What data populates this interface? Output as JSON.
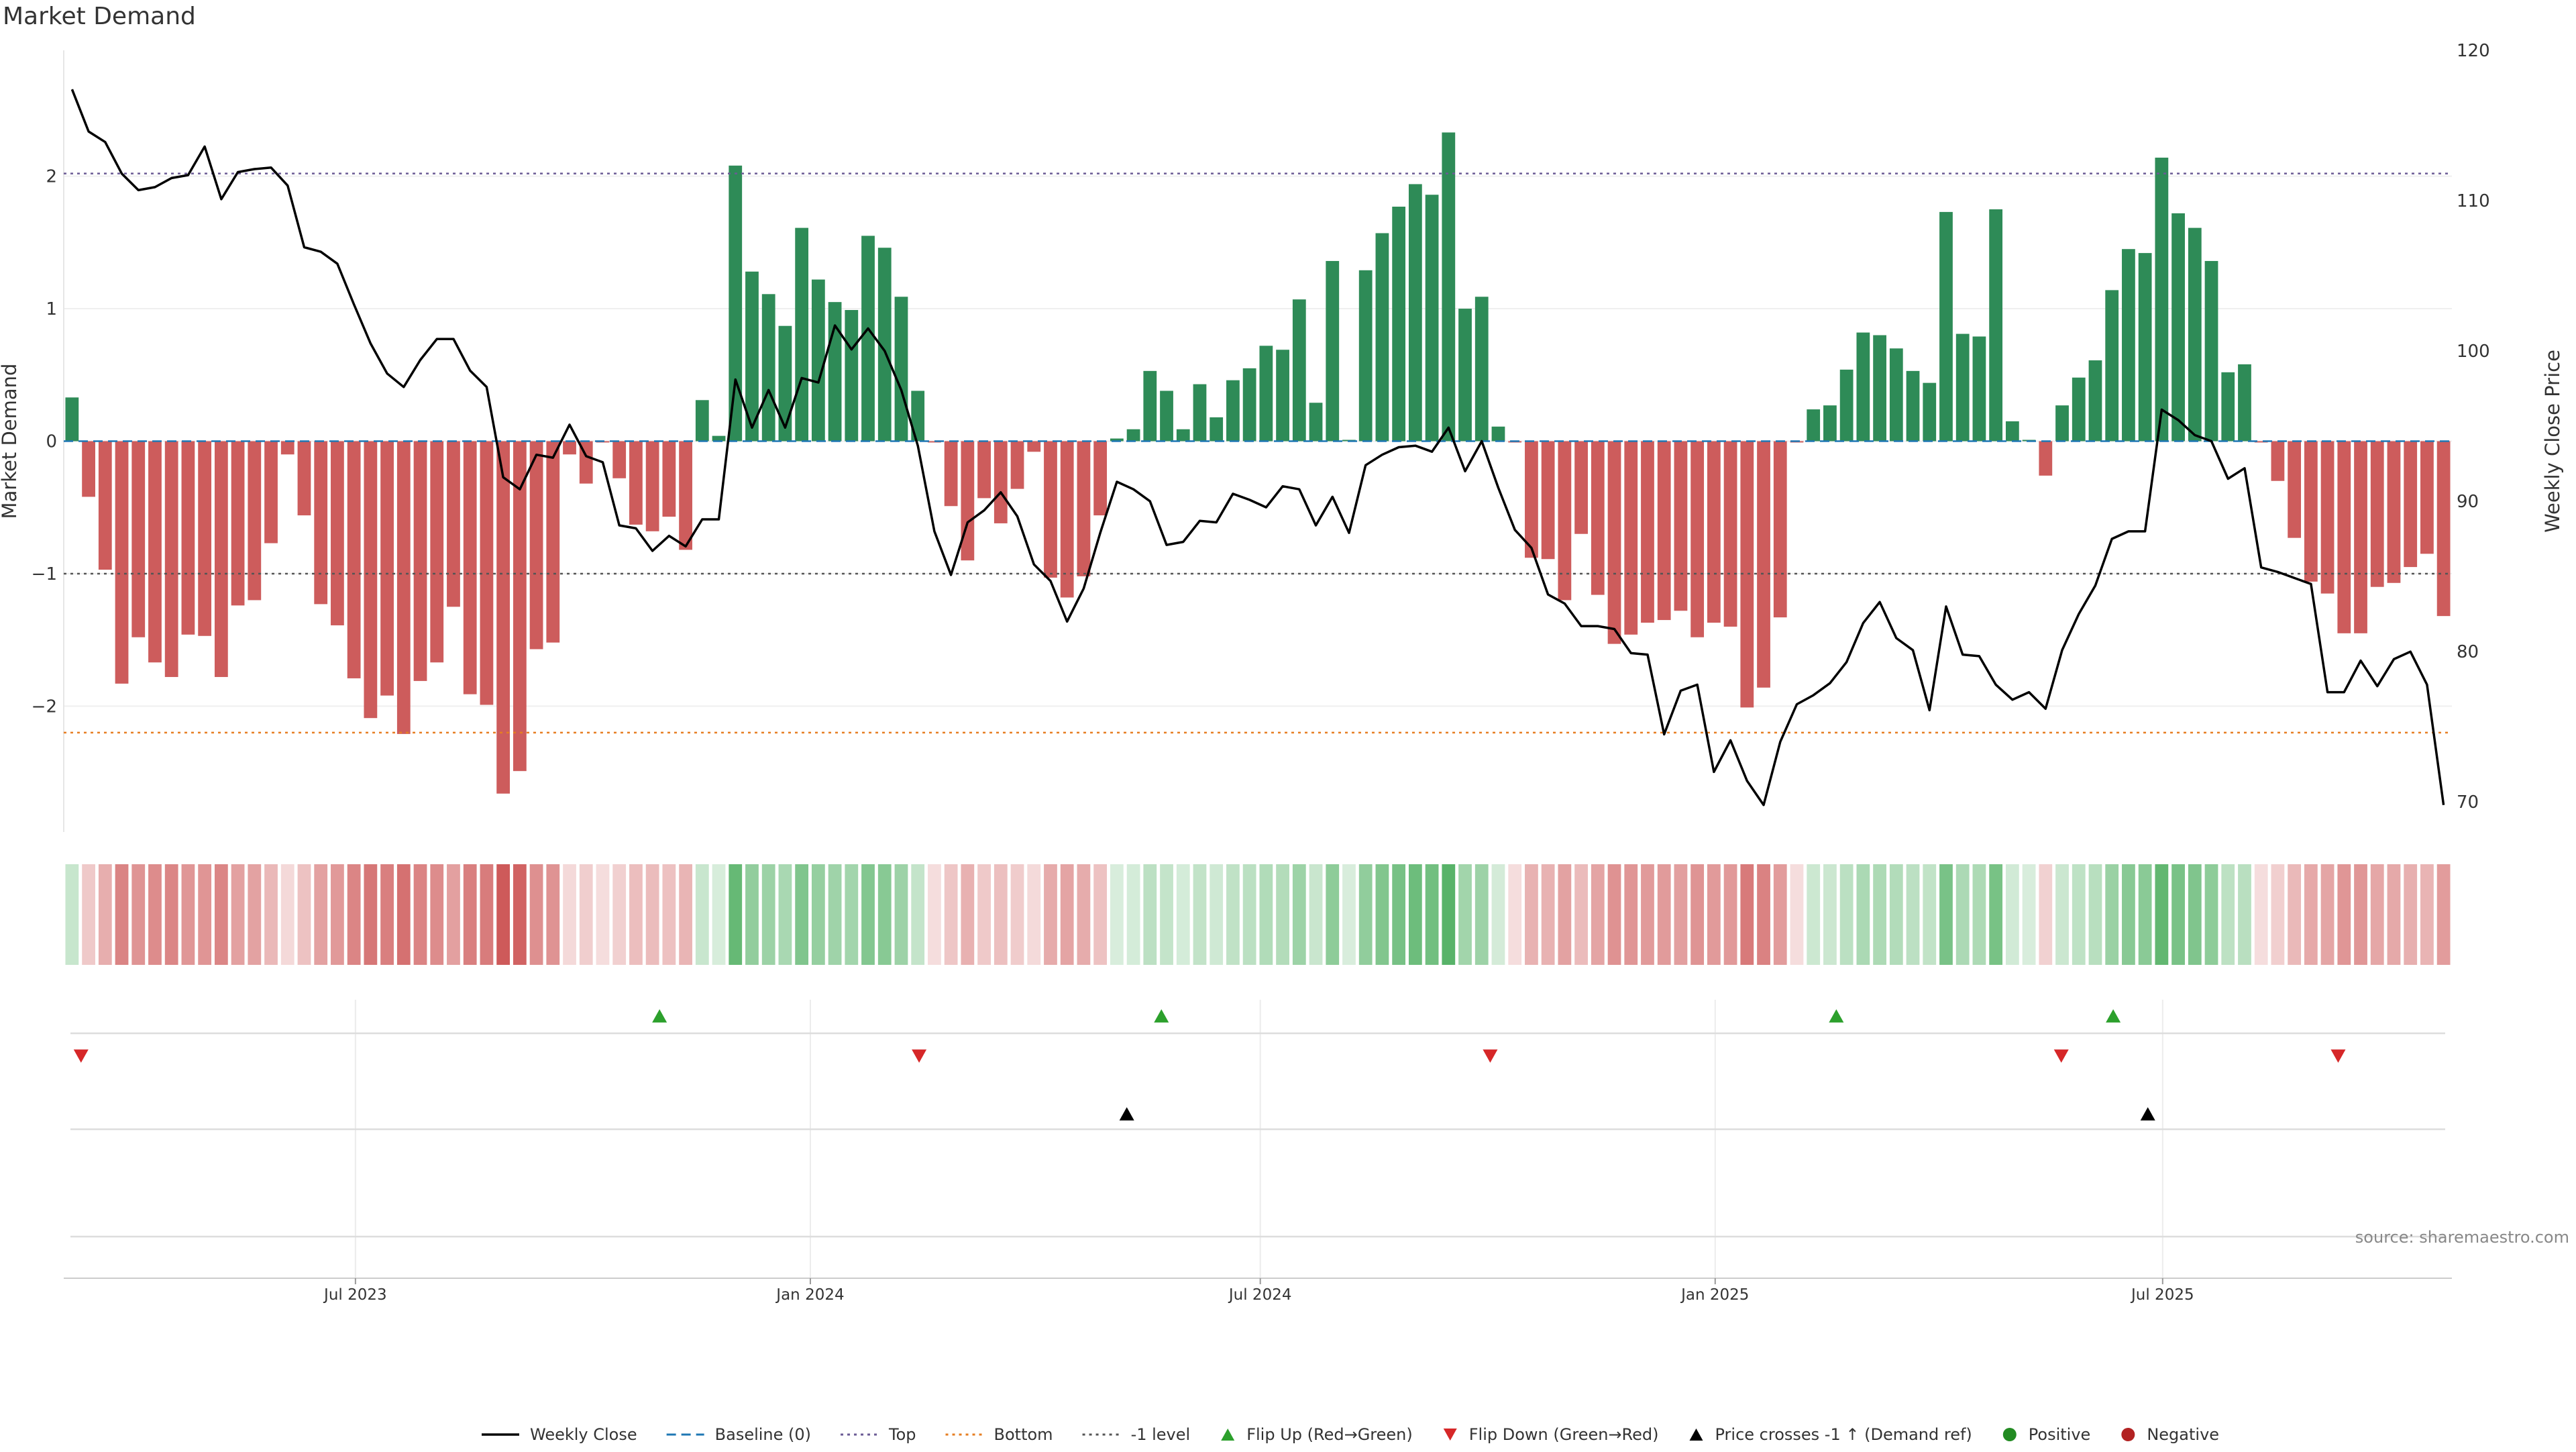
{
  "chart_title": "Market Demand",
  "source_text": "source: sharemaestro.com",
  "colors": {
    "positive_bar": "#2e8b57",
    "negative_bar": "#cd5c5c",
    "price_line": "#000000",
    "baseline": "#1f77b4",
    "top_line": "#6b5b95",
    "bottom_line": "#e67e22",
    "minus1_line": "#555555",
    "flip_up": "#2ca02c",
    "flip_down": "#d62728",
    "cross_marker": "#000000",
    "dot_positive": "#228b22",
    "dot_negative": "#b22222"
  },
  "chart_data": {
    "type": "bar",
    "title": "Market Demand",
    "ylabel_left": "Market Demand",
    "ylabel_right": "Weekly Close Price",
    "ylim_left": [
      -2.95,
      2.95
    ],
    "ylim_right": [
      68,
      120
    ],
    "left_ticks": [
      2,
      1,
      0,
      -1,
      -2
    ],
    "right_ticks": [
      120,
      110,
      100,
      90,
      80,
      70
    ],
    "x_start": "2023-03-05",
    "x_end": "2025-10-26",
    "x_tick_labels": [
      {
        "date": "2023-07-01",
        "label": "Jul 2023"
      },
      {
        "date": "2024-01-01",
        "label": "Jan 2024"
      },
      {
        "date": "2024-07-01",
        "label": "Jul 2024"
      },
      {
        "date": "2025-01-01",
        "label": "Jan 2025"
      },
      {
        "date": "2025-07-01",
        "label": "Jul 2025"
      }
    ],
    "reference_lines": {
      "top": 2.02,
      "bottom": -2.2,
      "minus1": -1,
      "baseline": 0
    },
    "series": [
      {
        "name": "Market Demand",
        "values": [
          0.33,
          -0.42,
          -0.97,
          -1.83,
          -1.48,
          -1.67,
          -1.78,
          -1.46,
          -1.47,
          -1.78,
          -1.24,
          -1.2,
          -0.77,
          -0.1,
          -0.56,
          -1.23,
          -1.39,
          -1.79,
          -2.09,
          -1.92,
          -2.21,
          -1.81,
          -1.67,
          -1.25,
          -1.91,
          -1.99,
          -2.66,
          -2.49,
          -1.57,
          -1.52,
          -0.1,
          -0.32,
          -0.01,
          -0.28,
          -0.63,
          -0.68,
          -0.57,
          -0.82,
          0.31,
          0.04,
          2.08,
          1.28,
          1.11,
          0.87,
          1.61,
          1.22,
          1.05,
          0.99,
          1.55,
          1.46,
          1.09,
          0.38,
          -0.01,
          -0.49,
          -0.9,
          -0.43,
          -0.62,
          -0.36,
          -0.08,
          -1.03,
          -1.18,
          -1.02,
          -0.56,
          0.02,
          0.09,
          0.53,
          0.38,
          0.09,
          0.43,
          0.18,
          0.46,
          0.55,
          0.72,
          0.69,
          1.07,
          0.29,
          1.36,
          0.01,
          1.29,
          1.57,
          1.77,
          1.94,
          1.86,
          2.33,
          1.0,
          1.09,
          0.11,
          -0.01,
          -0.88,
          -0.89,
          -1.2,
          -0.7,
          -1.16,
          -1.53,
          -1.46,
          -1.37,
          -1.35,
          -1.28,
          -1.48,
          -1.37,
          -1.4,
          -2.01,
          -1.86,
          -1.33,
          -0.01,
          0.24,
          0.27,
          0.54,
          0.82,
          0.8,
          0.7,
          0.53,
          0.44,
          1.73,
          0.81,
          0.79,
          1.75,
          0.15,
          0.01,
          -0.26,
          0.27,
          0.48,
          0.61,
          1.14,
          1.45,
          1.42,
          2.14,
          1.72,
          1.61,
          1.36,
          0.52,
          0.58,
          -0.01,
          -0.3,
          -0.73,
          -1.06,
          -1.15,
          -1.45,
          -1.45,
          -1.1,
          -1.07,
          -0.95,
          -0.85,
          -1.32
        ]
      },
      {
        "name": "Weekly Close",
        "values": [
          117.4,
          114.6,
          113.9,
          111.8,
          110.7,
          110.9,
          111.5,
          111.7,
          113.6,
          110.1,
          111.9,
          112.1,
          112.2,
          111.0,
          106.9,
          106.6,
          105.8,
          103.1,
          100.5,
          98.5,
          97.6,
          99.4,
          100.8,
          100.8,
          98.7,
          97.6,
          91.6,
          90.8,
          93.1,
          92.9,
          95.1,
          93.0,
          92.6,
          88.4,
          88.2,
          86.7,
          87.7,
          87.0,
          88.8,
          88.8,
          98.1,
          94.9,
          97.4,
          94.9,
          98.2,
          97.9,
          101.7,
          100.1,
          101.5,
          100.0,
          97.4,
          93.7,
          88.0,
          85.1,
          88.6,
          89.4,
          90.6,
          89.0,
          85.8,
          84.7,
          82.0,
          84.2,
          87.9,
          91.3,
          90.8,
          90.0,
          87.1,
          87.3,
          88.7,
          88.6,
          90.5,
          90.1,
          89.6,
          91.0,
          90.8,
          88.4,
          90.3,
          87.9,
          92.4,
          93.1,
          93.6,
          93.7,
          93.3,
          94.9,
          92.0,
          94.0,
          90.9,
          88.1,
          86.9,
          83.8,
          83.2,
          81.7,
          81.7,
          81.5,
          79.9,
          79.8,
          74.5,
          77.4,
          77.8,
          72.0,
          74.1,
          71.4,
          69.8,
          74.0,
          76.5,
          77.1,
          77.9,
          79.3,
          81.9,
          83.3,
          80.9,
          80.1,
          76.1,
          83.0,
          79.8,
          79.7,
          77.8,
          76.8,
          77.3,
          76.2,
          80.1,
          82.5,
          84.4,
          87.5,
          88.0,
          88.0,
          96.1,
          95.4,
          94.4,
          94.0,
          91.5,
          92.2,
          85.6,
          85.3,
          84.9,
          84.5,
          77.3,
          77.3,
          79.4,
          77.7,
          79.5,
          80.0,
          77.8,
          69.8
        ]
      }
    ],
    "flip_up_dates": [
      "2023-11-01",
      "2024-05-22",
      "2025-02-19",
      "2025-06-11"
    ],
    "flip_down_dates": [
      "2023-03-12",
      "2024-02-14",
      "2024-10-02",
      "2025-05-21",
      "2025-09-10"
    ],
    "price_cross_dates": [
      "2024-05-08",
      "2025-06-25"
    ]
  },
  "legend": [
    {
      "label": "Weekly Close",
      "kind": "line",
      "color": "#000000"
    },
    {
      "label": "Baseline (0)",
      "kind": "dash",
      "color": "#1f77b4"
    },
    {
      "label": "Top",
      "kind": "dot",
      "color": "#6b5b95"
    },
    {
      "label": "Bottom",
      "kind": "dot",
      "color": "#e67e22"
    },
    {
      "label": "-1 level",
      "kind": "dot",
      "color": "#555555"
    },
    {
      "label": "Flip Up (Red→Green)",
      "kind": "tri-up",
      "color": "#2ca02c"
    },
    {
      "label": "Flip Down (Green→Red)",
      "kind": "tri-down",
      "color": "#d62728"
    },
    {
      "label": "Price crosses -1 ↑ (Demand ref)",
      "kind": "tri-up",
      "color": "#000000"
    },
    {
      "label": "Positive",
      "kind": "circle",
      "color": "#228b22"
    },
    {
      "label": "Negative",
      "kind": "circle",
      "color": "#b22222"
    }
  ]
}
